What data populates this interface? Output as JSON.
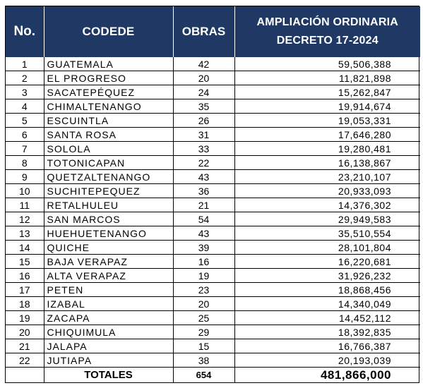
{
  "table": {
    "headers": {
      "no": "No.",
      "codede": "CODEDE",
      "obras": "OBRAS",
      "ampliacion_line1": "AMPLIACIÓN ORDINARIA",
      "ampliacion_line2": "DECRETO 17-2024"
    },
    "rows": [
      {
        "no": "1",
        "codede": "GUATEMALA",
        "obras": "42",
        "ampliacion": "59,506,388"
      },
      {
        "no": "2",
        "codede": "EL PROGRESO",
        "obras": "20",
        "ampliacion": "11,821,898"
      },
      {
        "no": "3",
        "codede": "SACATEPÉQUEZ",
        "obras": "24",
        "ampliacion": "15,262,847"
      },
      {
        "no": "4",
        "codede": "CHIMALTENANGO",
        "obras": "35",
        "ampliacion": "19,914,674"
      },
      {
        "no": "5",
        "codede": "ESCUINTLA",
        "obras": "26",
        "ampliacion": "19,053,331"
      },
      {
        "no": "6",
        "codede": "SANTA ROSA",
        "obras": "31",
        "ampliacion": "17,646,280"
      },
      {
        "no": "7",
        "codede": "SOLOLA",
        "obras": "33",
        "ampliacion": "19,280,481"
      },
      {
        "no": "8",
        "codede": "TOTONICAPAN",
        "obras": "22",
        "ampliacion": "16,138,867"
      },
      {
        "no": "9",
        "codede": "QUETZALTENANGO",
        "obras": "43",
        "ampliacion": "23,210,107"
      },
      {
        "no": "10",
        "codede": "SUCHITEPEQUEZ",
        "obras": "36",
        "ampliacion": "20,933,093"
      },
      {
        "no": "11",
        "codede": "RETALHULEU",
        "obras": "21",
        "ampliacion": "14,376,302"
      },
      {
        "no": "12",
        "codede": "SAN MARCOS",
        "obras": "54",
        "ampliacion": "29,949,583"
      },
      {
        "no": "13",
        "codede": "HUEHUETENANGO",
        "obras": "43",
        "ampliacion": "35,510,554"
      },
      {
        "no": "14",
        "codede": "QUICHE",
        "obras": "39",
        "ampliacion": "28,101,804"
      },
      {
        "no": "15",
        "codede": "BAJA VERAPAZ",
        "obras": "16",
        "ampliacion": "16,220,681"
      },
      {
        "no": "16",
        "codede": "ALTA VERAPAZ",
        "obras": "19",
        "ampliacion": "31,926,232"
      },
      {
        "no": "17",
        "codede": "PETEN",
        "obras": "23",
        "ampliacion": "18,868,456"
      },
      {
        "no": "18",
        "codede": "IZABAL",
        "obras": "20",
        "ampliacion": "14,340,049"
      },
      {
        "no": "19",
        "codede": "ZACAPA",
        "obras": "25",
        "ampliacion": "14,452,112"
      },
      {
        "no": "20",
        "codede": "CHIQUIMULA",
        "obras": "29",
        "ampliacion": "18,392,835"
      },
      {
        "no": "21",
        "codede": "JALAPA",
        "obras": "15",
        "ampliacion": "16,766,387"
      },
      {
        "no": "22",
        "codede": "JUTIAPA",
        "obras": "38",
        "ampliacion": "20,193,039"
      }
    ],
    "totals": {
      "label": "TOTALES",
      "obras": "654",
      "ampliacion": "481,866,000"
    }
  },
  "colors": {
    "header_bg": "#1f3864",
    "header_text": "#ffffff",
    "grid": "#000000"
  }
}
